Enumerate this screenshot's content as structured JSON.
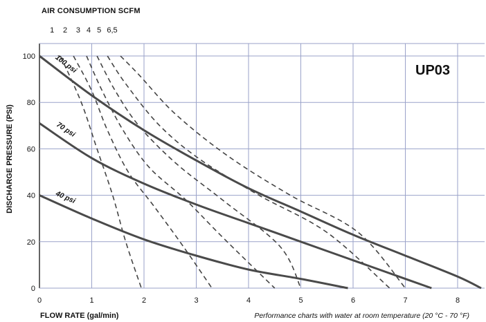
{
  "chart_data": {
    "type": "line",
    "title": "AIR CONSUMPTION SCFM",
    "model_label": "UP03",
    "xlabel": "FLOW RATE (gal/min)",
    "ylabel": "DISCHARGE PRESSURE (PSI)",
    "footnote": "Performance charts with water at room temperature (20 °C - 70 °F)",
    "xlim": [
      0,
      8.5
    ],
    "ylim": [
      0,
      100
    ],
    "x_ticks": [
      "0",
      "1",
      "2",
      "3",
      "4",
      "5",
      "6",
      "7",
      "8"
    ],
    "y_ticks": [
      "0",
      "20",
      "40",
      "60",
      "80",
      "100"
    ],
    "grid": true,
    "air_pressure_curves": [
      {
        "name": "100 psi",
        "points": [
          [
            0,
            100
          ],
          [
            1,
            83
          ],
          [
            2,
            68
          ],
          [
            3,
            55
          ],
          [
            4,
            43
          ],
          [
            5,
            33
          ],
          [
            6,
            23
          ],
          [
            7,
            14
          ],
          [
            8,
            5
          ],
          [
            8.45,
            0
          ]
        ]
      },
      {
        "name": "70 psi",
        "points": [
          [
            0,
            71
          ],
          [
            1,
            56
          ],
          [
            2,
            45
          ],
          [
            3,
            36
          ],
          [
            4,
            28
          ],
          [
            5,
            20
          ],
          [
            6,
            12
          ],
          [
            7,
            4
          ],
          [
            7.5,
            0
          ]
        ]
      },
      {
        "name": "40 psi",
        "points": [
          [
            0,
            40
          ],
          [
            1,
            30
          ],
          [
            2,
            21
          ],
          [
            3,
            14
          ],
          [
            4,
            8
          ],
          [
            5,
            4
          ],
          [
            5.9,
            0
          ]
        ]
      }
    ],
    "air_consumption_curves": [
      {
        "name": "1",
        "points": [
          [
            0.4,
            100
          ],
          [
            0.8,
            80
          ],
          [
            1.1,
            60
          ],
          [
            1.4,
            40
          ],
          [
            1.65,
            20
          ],
          [
            1.95,
            0
          ]
        ]
      },
      {
        "name": "2",
        "points": [
          [
            0.65,
            100
          ],
          [
            1.0,
            85
          ],
          [
            1.3,
            68
          ],
          [
            1.7,
            50
          ],
          [
            2.2,
            35
          ],
          [
            2.75,
            18
          ],
          [
            3.3,
            0
          ]
        ]
      },
      {
        "name": "3",
        "points": [
          [
            0.9,
            100
          ],
          [
            1.2,
            85
          ],
          [
            1.6,
            68
          ],
          [
            2.1,
            52
          ],
          [
            2.8,
            38
          ],
          [
            3.5,
            22
          ],
          [
            4.5,
            0
          ]
        ]
      },
      {
        "name": "4",
        "points": [
          [
            1.1,
            100
          ],
          [
            1.45,
            85
          ],
          [
            1.9,
            70
          ],
          [
            2.6,
            54
          ],
          [
            3.5,
            38
          ],
          [
            4.6,
            18
          ],
          [
            5.0,
            0
          ]
        ]
      },
      {
        "name": "5",
        "points": [
          [
            1.3,
            100
          ],
          [
            1.65,
            88
          ],
          [
            2.3,
            70
          ],
          [
            3.1,
            55
          ],
          [
            4.2,
            40
          ],
          [
            5.5,
            24
          ],
          [
            6.7,
            0
          ]
        ]
      },
      {
        "name": "6,5",
        "points": [
          [
            1.55,
            100
          ],
          [
            1.9,
            92
          ],
          [
            2.6,
            75
          ],
          [
            3.6,
            57
          ],
          [
            4.8,
            40
          ],
          [
            6.1,
            24
          ],
          [
            7.0,
            0
          ]
        ]
      }
    ]
  }
}
